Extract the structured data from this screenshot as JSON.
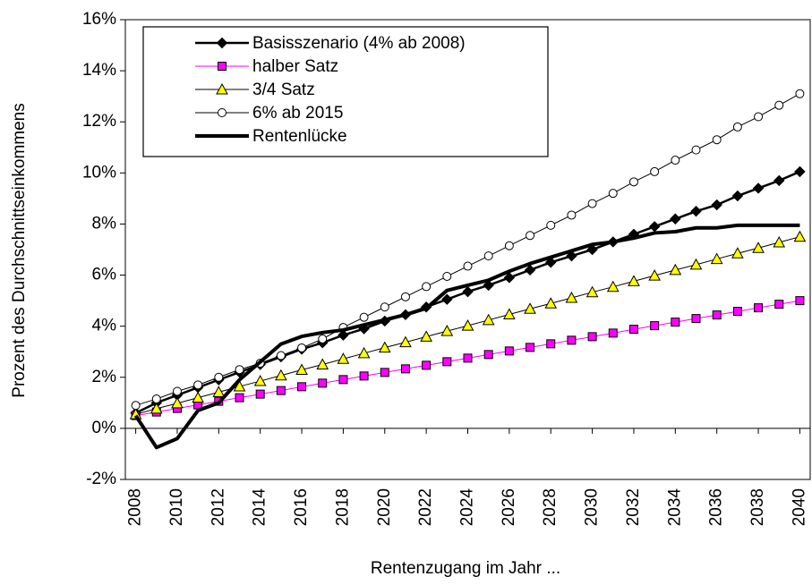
{
  "chart_data": {
    "type": "line",
    "x_label": "Rentenzugang im Jahr ...",
    "y_label": "Prozent des Durchschnittseinkommens",
    "x": [
      2008,
      2009,
      2010,
      2011,
      2012,
      2013,
      2014,
      2015,
      2016,
      2017,
      2018,
      2019,
      2020,
      2021,
      2022,
      2023,
      2024,
      2025,
      2026,
      2027,
      2028,
      2029,
      2030,
      2031,
      2032,
      2033,
      2034,
      2035,
      2036,
      2037,
      2038,
      2039,
      2040
    ],
    "xlim": [
      2007.5,
      2040.5
    ],
    "xticks": [
      2008,
      2010,
      2012,
      2014,
      2016,
      2018,
      2020,
      2022,
      2024,
      2026,
      2028,
      2030,
      2032,
      2034,
      2036,
      2038,
      2040
    ],
    "ylim": [
      -2,
      16
    ],
    "yticks": [
      {
        "value": -2,
        "label": "-2%"
      },
      {
        "value": 0,
        "label": "0%"
      },
      {
        "value": 2,
        "label": "2%"
      },
      {
        "value": 4,
        "label": "4%"
      },
      {
        "value": 6,
        "label": "6%"
      },
      {
        "value": 8,
        "label": "8%"
      },
      {
        "value": 10,
        "label": "10%"
      },
      {
        "value": 12,
        "label": "12%"
      },
      {
        "value": 14,
        "label": "14%"
      },
      {
        "value": 16,
        "label": "16%"
      }
    ],
    "legend": "top-left",
    "series": [
      {
        "name": "Basisszenario (4% ab 2008)",
        "color": "#000000",
        "marker": "diamond",
        "marker_color": "#000000",
        "line_width": 2.5,
        "values": [
          0.6,
          1.0,
          1.3,
          1.6,
          1.9,
          2.2,
          2.5,
          2.8,
          3.1,
          3.35,
          3.65,
          3.9,
          4.2,
          4.45,
          4.75,
          5.05,
          5.35,
          5.6,
          5.9,
          6.2,
          6.5,
          6.75,
          7.0,
          7.3,
          7.6,
          7.9,
          8.2,
          8.5,
          8.75,
          9.1,
          9.4,
          9.7,
          10.05
        ]
      },
      {
        "name": "halber Satz",
        "color": "#ff00ff",
        "marker": "square",
        "marker_color": "#ff00ff",
        "line_width": 1,
        "values": [
          0.5,
          0.64,
          0.78,
          0.92,
          1.06,
          1.2,
          1.34,
          1.48,
          1.63,
          1.77,
          1.91,
          2.05,
          2.19,
          2.33,
          2.47,
          2.61,
          2.75,
          2.89,
          3.03,
          3.17,
          3.31,
          3.45,
          3.59,
          3.73,
          3.88,
          4.02,
          4.16,
          4.3,
          4.44,
          4.58,
          4.72,
          4.86,
          5.0
        ]
      },
      {
        "name": "3/4 Satz",
        "color": "#000000",
        "marker": "triangle",
        "marker_color": "#ffff00",
        "line_width": 1,
        "values": [
          0.55,
          0.77,
          0.98,
          1.2,
          1.42,
          1.64,
          1.85,
          2.07,
          2.29,
          2.5,
          2.72,
          2.94,
          3.16,
          3.37,
          3.59,
          3.81,
          4.02,
          4.24,
          4.46,
          4.68,
          4.89,
          5.11,
          5.33,
          5.54,
          5.76,
          5.98,
          6.2,
          6.41,
          6.63,
          6.85,
          7.06,
          7.28,
          7.5
        ]
      },
      {
        "name": "6% ab 2015",
        "color": "#000000",
        "marker": "circle",
        "marker_color": "#ffffff",
        "line_width": 1,
        "values": [
          0.9,
          1.15,
          1.45,
          1.7,
          2.0,
          2.3,
          2.55,
          2.85,
          3.15,
          3.5,
          3.95,
          4.35,
          4.75,
          5.15,
          5.55,
          5.95,
          6.35,
          6.75,
          7.15,
          7.55,
          7.95,
          8.35,
          8.8,
          9.2,
          9.65,
          10.05,
          10.5,
          10.9,
          11.3,
          11.8,
          12.2,
          12.65,
          13.1
        ]
      },
      {
        "name": "Rentenlücke",
        "color": "#000000",
        "marker": "none",
        "marker_color": "#000000",
        "line_width": 4,
        "values": [
          0.5,
          -0.75,
          -0.4,
          0.7,
          1.0,
          1.9,
          2.6,
          3.3,
          3.6,
          3.75,
          3.85,
          4.05,
          4.25,
          4.45,
          4.7,
          5.4,
          5.6,
          5.8,
          6.15,
          6.45,
          6.7,
          6.95,
          7.2,
          7.3,
          7.45,
          7.65,
          7.7,
          7.85,
          7.85,
          7.95,
          7.95,
          7.95,
          7.95
        ]
      }
    ]
  }
}
